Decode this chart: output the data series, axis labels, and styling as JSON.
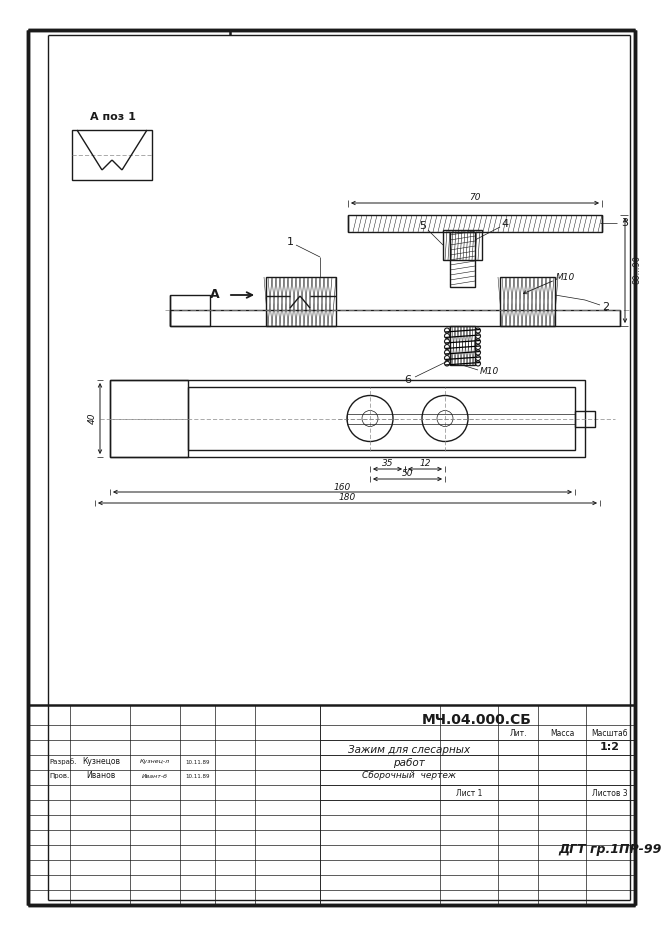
{
  "bg_color": "#ffffff",
  "line_color": "#1a1a1a",
  "title_code": "МЧ.04.000.СБ",
  "title_name1": "Зажим для слесарных",
  "title_name2": "работ",
  "title_sub": "Сборочный  чертеж",
  "scale": "1:2",
  "sheet": "Лист 1",
  "sheets": "Листов 3",
  "group": "ДГТ гр.1ПР-99",
  "razrab": "Разраб.",
  "razrab_name": "Кузнецов",
  "prov": "Пров.",
  "prov_name": "Иванов",
  "lit": "Лит.",
  "massa": "Масса",
  "masshtab": "Масштаб",
  "dim_70": "70",
  "dim_8090": "80...90",
  "dim_m10a": "М10",
  "dim_m10b": "М10",
  "dim_40": "40",
  "dim_35": "35",
  "dim_12": "12",
  "dim_50": "50",
  "dim_160": "160",
  "dim_180": "180",
  "pos1": "1",
  "pos2": "2",
  "pos3": "3",
  "pos4": "4",
  "pos5": "5",
  "pos6": "6",
  "label_A": "А",
  "label_Apos1": "А поз 1"
}
